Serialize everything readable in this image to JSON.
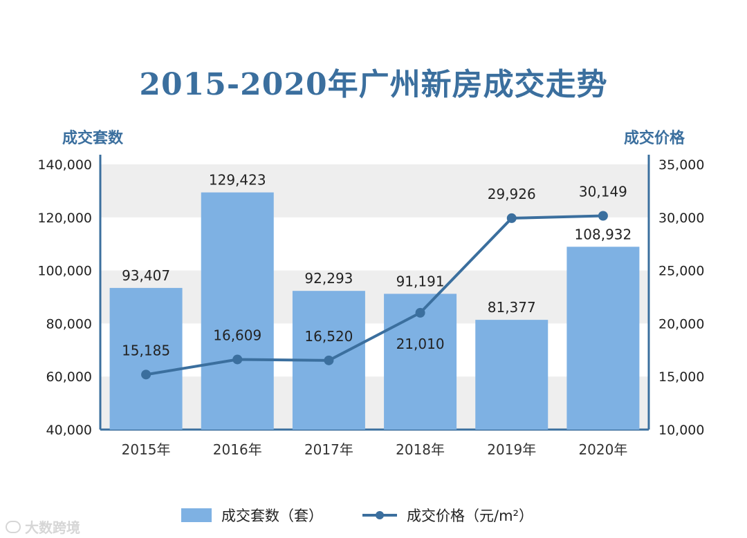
{
  "title": "2015-2020年广州新房成交走势",
  "watermark": "大数跨境",
  "colors": {
    "bar": "#7eb1e3",
    "line": "#3b6f9e",
    "axis": "#3b6f9e",
    "band": "#eeeeee"
  },
  "chart_data": {
    "type": "bar",
    "title": "2015-2020年广州新房成交走势",
    "categories": [
      "2015年",
      "2016年",
      "2017年",
      "2018年",
      "2019年",
      "2020年"
    ],
    "y_left_title": "成交套数",
    "y_right_title": "成交价格",
    "y_left_ticks": [
      "140,000",
      "120,000",
      "100,000",
      "80,000",
      "60,000",
      "40,000"
    ],
    "y_right_ticks": [
      "35,000",
      "30,000",
      "25,000",
      "20,000",
      "15,000",
      "10,000"
    ],
    "ylim_left": [
      40000,
      140000
    ],
    "ylim_right": [
      10000,
      35000
    ],
    "series": [
      {
        "name": "成交套数（套）",
        "type": "bar",
        "axis": "left",
        "values": [
          93407,
          129423,
          92293,
          91191,
          81377,
          108932
        ],
        "labels": [
          "93,407",
          "129,423",
          "92,293",
          "91,191",
          "81,377",
          "108,932"
        ]
      },
      {
        "name": "成交价格（元/m²）",
        "type": "line",
        "axis": "right",
        "values": [
          15185,
          16609,
          16520,
          21010,
          29926,
          30149
        ],
        "labels": [
          "15,185",
          "16,609",
          "16,520",
          "21,010",
          "29,926",
          "30,149"
        ]
      }
    ]
  }
}
